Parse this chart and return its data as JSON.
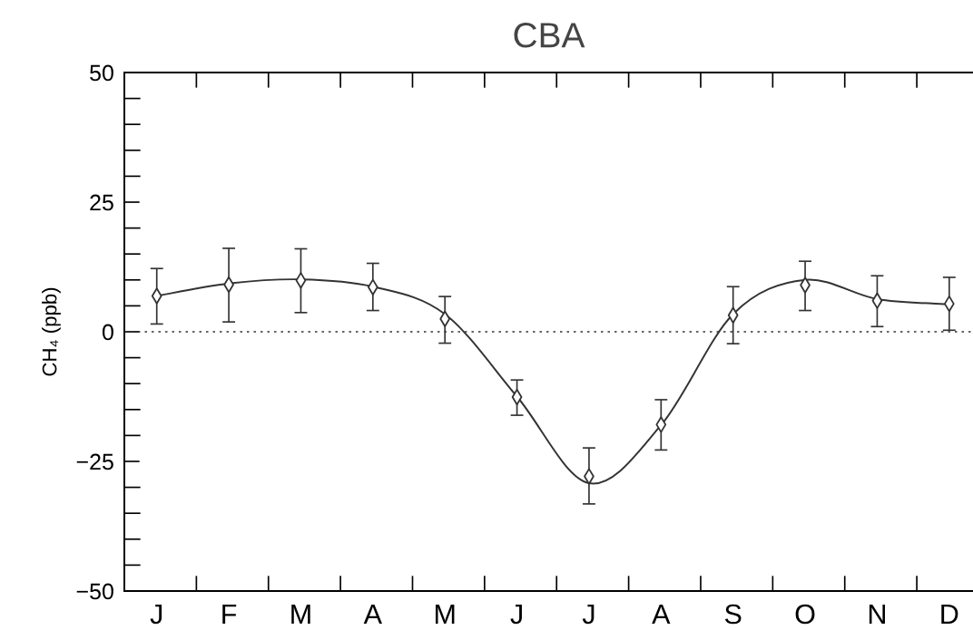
{
  "chart_data": {
    "type": "scatter",
    "title": "CBA",
    "ylabel": "CH₄ (ppb)",
    "categories": [
      "J",
      "F",
      "M",
      "A",
      "M",
      "J",
      "J",
      "A",
      "S",
      "O",
      "N",
      "D"
    ],
    "ylim": [
      -50,
      50
    ],
    "yticks": [
      {
        "value": -50,
        "label": "−50"
      },
      {
        "value": -25,
        "label": "−25"
      },
      0,
      25,
      50
    ],
    "grid": false,
    "ref_lines": [
      {
        "axis": "y",
        "value": 0,
        "color": "#333333",
        "line_style": "dotted"
      }
    ],
    "series": [
      {
        "type": "line",
        "color": "#333333",
        "marker": "none",
        "line_style": "solid",
        "values": [
          6.9,
          9.3,
          10.1,
          8.7,
          3.4,
          -12.5,
          -29.2,
          -18,
          3.4,
          10.0,
          6.3,
          5.3
        ]
      },
      {
        "color": "#333333",
        "marker": "diamond",
        "values": [
          6.9,
          9.1,
          9.9,
          8.6,
          2.5,
          -12.6,
          -27.9,
          -17.9,
          3.2,
          9.0,
          6.0,
          5.4
        ],
        "errors": [
          [
            1.5,
            12.2
          ],
          [
            1.9,
            16.1
          ],
          [
            3.7,
            16.0
          ],
          [
            4.1,
            13.2
          ],
          [
            -2.2,
            6.8
          ],
          [
            -16.1,
            -9.3
          ],
          [
            -33.2,
            -22.4
          ],
          [
            -22.8,
            -13.1
          ],
          [
            -2.3,
            8.7
          ],
          [
            4.1,
            13.6
          ],
          [
            1.0,
            10.8
          ],
          [
            0.3,
            10.5
          ]
        ]
      }
    ]
  }
}
